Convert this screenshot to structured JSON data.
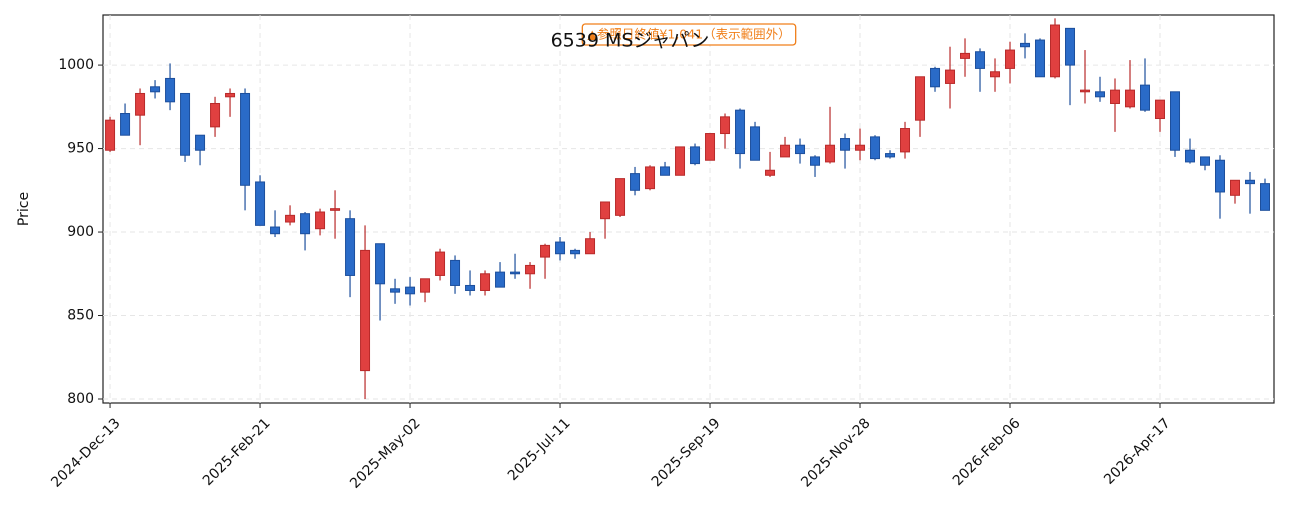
{
  "chart_data": {
    "type": "candlestick",
    "title": "6539  MSジャパン",
    "y_label": "Price",
    "annotation": "▲参照日終値¥1,041（表示範囲外）",
    "annotation_color": "#f07f1a",
    "up_color": "#e04040",
    "up_edge": "#b82a2a",
    "down_color": "#2a6bc8",
    "down_edge": "#1d4f9c",
    "grid": true,
    "xlim": [
      -0.47,
      77.6
    ],
    "ylim": [
      797.6,
      1030
    ],
    "yticks": [
      800,
      850,
      900,
      950,
      1000
    ],
    "xticks": [
      0,
      10,
      20,
      30,
      40,
      50,
      60,
      70
    ],
    "categories": [
      "2024-Dec-13",
      null,
      null,
      null,
      null,
      null,
      null,
      null,
      null,
      null,
      "2025-Feb-21",
      null,
      null,
      null,
      null,
      null,
      null,
      null,
      null,
      null,
      "2025-May-02",
      null,
      null,
      null,
      null,
      null,
      null,
      null,
      null,
      null,
      "2025-Jul-11",
      null,
      null,
      null,
      null,
      null,
      null,
      null,
      null,
      null,
      "2025-Sep-19",
      null,
      null,
      null,
      null,
      null,
      null,
      null,
      null,
      null,
      "2025-Nov-28",
      null,
      null,
      null,
      null,
      null,
      null,
      null,
      null,
      null,
      "2026-Feb-06",
      null,
      null,
      null,
      null,
      null,
      null,
      null,
      null,
      null,
      "2026-Apr-17",
      null,
      null,
      null,
      null,
      null,
      null,
      null
    ],
    "open": [
      949,
      971,
      970,
      987,
      992,
      983,
      958,
      963,
      981,
      983,
      930,
      903,
      906,
      911,
      902,
      913,
      908,
      817,
      893,
      866,
      867,
      864,
      874,
      883,
      868,
      865,
      876,
      876,
      875,
      885,
      894,
      889,
      887,
      908,
      910,
      935,
      926,
      939,
      934,
      951,
      943,
      959,
      973,
      963,
      934,
      945,
      952,
      945,
      942,
      956,
      949,
      957,
      947,
      948,
      967,
      998,
      989,
      1004,
      1008,
      993,
      998,
      1013,
      1015,
      993,
      1022,
      984,
      984,
      977,
      975,
      988,
      968,
      984,
      949,
      945,
      943,
      922,
      931,
      929
    ],
    "high": [
      969,
      977,
      986,
      991,
      1001,
      983,
      958,
      981,
      986,
      986,
      934,
      913,
      916,
      912,
      914,
      925,
      913,
      904,
      893,
      872,
      873,
      872,
      890,
      886,
      877,
      877,
      882,
      887,
      882,
      893,
      897,
      890,
      900,
      918,
      932,
      939,
      940,
      942,
      951,
      953,
      959,
      971,
      974,
      966,
      948,
      957,
      956,
      946,
      975,
      959,
      962,
      958,
      949,
      966,
      993,
      999,
      1011,
      1016,
      1010,
      1004,
      1014,
      1019,
      1016,
      1028,
      1022,
      1009,
      993,
      992,
      1003,
      1004,
      979,
      984,
      956,
      945,
      946,
      931,
      936,
      932
    ],
    "low": [
      948,
      958,
      952,
      980,
      973,
      942,
      940,
      957,
      969,
      913,
      904,
      897,
      904,
      889,
      898,
      896,
      861,
      800,
      847,
      857,
      856,
      858,
      871,
      863,
      862,
      862,
      867,
      872,
      866,
      872,
      883,
      884,
      887,
      896,
      909,
      922,
      925,
      934,
      934,
      940,
      943,
      950,
      938,
      943,
      933,
      945,
      941,
      933,
      941,
      938,
      943,
      943,
      944,
      944,
      957,
      984,
      974,
      993,
      984,
      984,
      989,
      1004,
      993,
      992,
      976,
      977,
      978,
      960,
      974,
      972,
      960,
      945,
      941,
      937,
      908,
      917,
      911,
      913
    ],
    "close": [
      967,
      958,
      983,
      984,
      978,
      946,
      949,
      977,
      983,
      928,
      904,
      899,
      910,
      899,
      912,
      914,
      874,
      889,
      869,
      864,
      863,
      872,
      888,
      868,
      865,
      875,
      867,
      875,
      880,
      892,
      887,
      887,
      896,
      918,
      932,
      925,
      939,
      934,
      951,
      941,
      959,
      969,
      947,
      943,
      937,
      952,
      947,
      940,
      952,
      949,
      952,
      944,
      945,
      962,
      993,
      987,
      997,
      1007,
      998,
      996,
      1009,
      1011,
      993,
      1024,
      1000,
      985,
      981,
      985,
      985,
      973,
      979,
      949,
      942,
      940,
      924,
      931,
      929,
      913
    ]
  }
}
